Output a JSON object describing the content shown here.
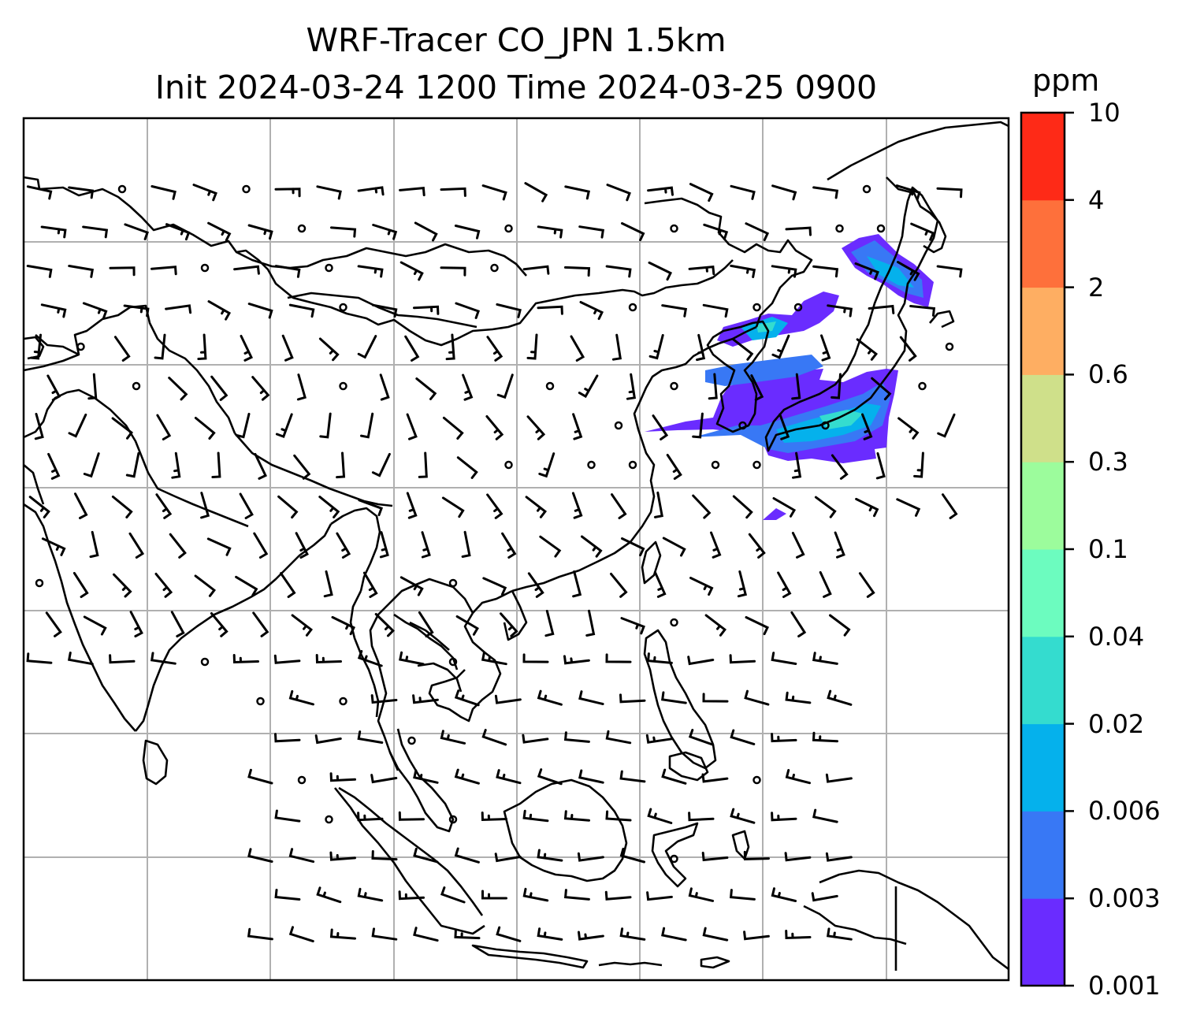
{
  "title": {
    "line1": "WRF-Tracer CO_JPN 1.5km",
    "line2": "Init 2024-03-24 1200 Time 2024-03-25 0900"
  },
  "colorbar": {
    "unit": "ppm",
    "levels": [
      "0.001",
      "0.003",
      "0.006",
      "0.02",
      "0.04",
      "0.1",
      "0.3",
      "0.6",
      "2",
      "4",
      "10"
    ],
    "colors": [
      "#6a2cff",
      "#3878f5",
      "#05b1ec",
      "#34dccf",
      "#6cfcbf",
      "#9cfc9c",
      "#cfe08a",
      "#feae62",
      "#fe703b",
      "#fe2a17"
    ]
  },
  "map": {
    "coastline_color": "#000000",
    "grid_color": "#b0b0b0",
    "plume_colors": [
      "#6a2cff",
      "#3878f5",
      "#05b1ec",
      "#34dccf"
    ]
  }
}
